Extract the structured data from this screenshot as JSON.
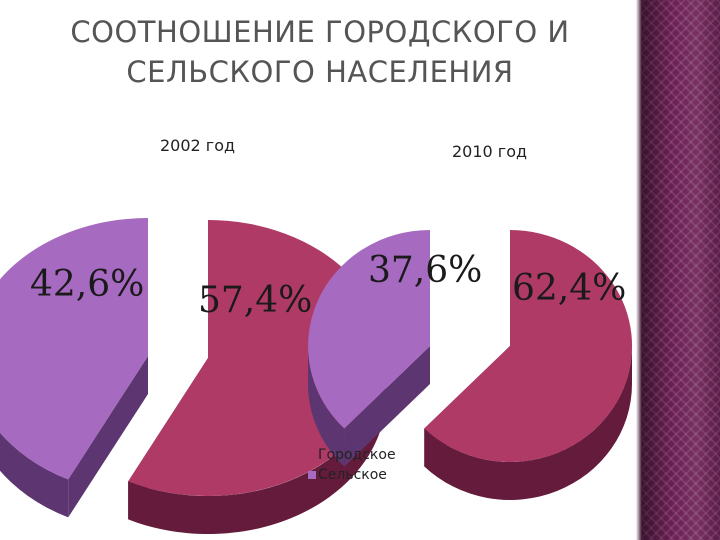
{
  "title": {
    "line1": "СООТНОШЕНИЕ ГОРОДСКОГО И",
    "line2": "СЕЛЬСКОГО НАСЕЛЕНИЯ"
  },
  "colors": {
    "urban": "#b03a66",
    "urban_side": "#641b3c",
    "rural": "#a66ac0",
    "rural_side": "#5d3570",
    "panel": "#6c1f55"
  },
  "chart_data": [
    {
      "type": "pie",
      "title": "2002 год",
      "categories": [
        "Городское",
        "Сельское"
      ],
      "values": [
        57.4,
        42.6
      ],
      "labels": [
        "57,4%",
        "42,6%"
      ],
      "exploded": true,
      "legend": "bottom"
    },
    {
      "type": "pie",
      "title": "2010 год",
      "categories": [
        "Городское",
        "Сельское"
      ],
      "values": [
        62.4,
        37.6
      ],
      "labels": [
        "62,4%",
        "37,6%"
      ],
      "exploded": true,
      "legend": "bottom"
    }
  ],
  "legend": {
    "items": [
      "Городское",
      "Сельское"
    ]
  }
}
